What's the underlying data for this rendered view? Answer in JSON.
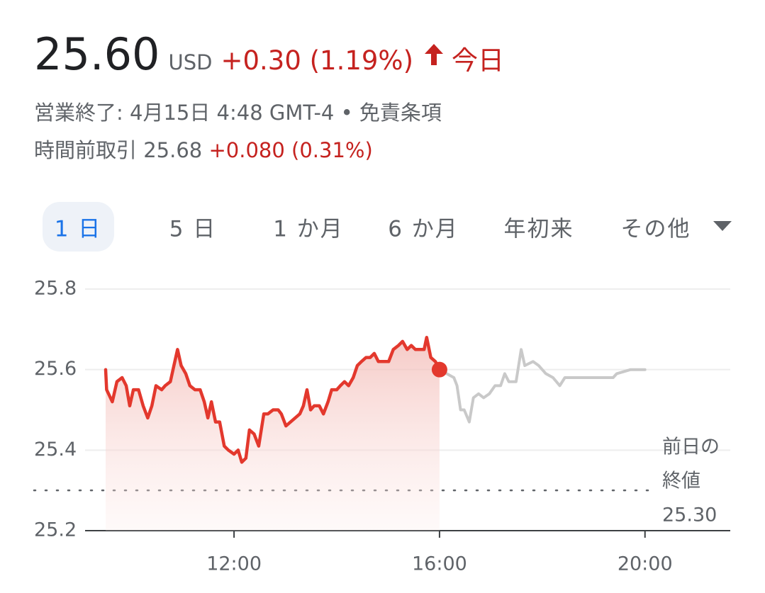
{
  "header": {
    "price": "25.60",
    "currency": "USD",
    "change": "+0.30 (1.19%)",
    "period": "今日",
    "status": "営業終了: 4月15日 4:48 GMT-4 •",
    "disclaimer": "免責条項",
    "premarket_label": "時間前取引",
    "premarket_price": "25.68",
    "premarket_change": "+0.080 (0.31%)"
  },
  "tabs": [
    "1 日",
    "5 日",
    "1 か月",
    "6 か月",
    "年初来",
    "その他"
  ],
  "selected_tab": 0,
  "chart_data": {
    "type": "line",
    "xlim": [
      9.1,
      21.66
    ],
    "xticks": [
      {
        "value": 12,
        "label": "12:00"
      },
      {
        "value": 16,
        "label": "16:00"
      },
      {
        "value": 20,
        "label": "20:00"
      }
    ],
    "ylim": [
      25.2,
      25.8
    ],
    "yticks": [
      25.2,
      25.4,
      25.6,
      25.8
    ],
    "grid": true,
    "previous_close": {
      "value": 25.3,
      "label": "25.30"
    },
    "previous_close_label": [
      "前日の",
      "終値"
    ],
    "series": [
      {
        "color": "#e3382d",
        "fill": true,
        "marker": "last",
        "x": [
          9.5,
          9.52,
          9.63,
          9.72,
          9.82,
          9.9,
          9.97,
          10.04,
          10.14,
          10.23,
          10.32,
          10.4,
          10.48,
          10.59,
          10.66,
          10.76,
          10.83,
          10.9,
          10.97,
          11.06,
          11.14,
          11.24,
          11.34,
          11.42,
          11.49,
          11.56,
          11.64,
          11.72,
          11.81,
          11.89,
          12,
          12.08,
          12.15,
          12.23,
          12.3,
          12.39,
          12.48,
          12.58,
          12.66,
          12.76,
          12.86,
          12.92,
          13.01,
          13.1,
          13.19,
          13.28,
          13.35,
          13.42,
          13.49,
          13.56,
          13.66,
          13.74,
          13.83,
          13.9,
          14,
          14.07,
          14.15,
          14.23,
          14.32,
          14.4,
          14.48,
          14.57,
          14.65,
          14.73,
          14.81,
          14.9,
          15.01,
          15.1,
          15.2,
          15.28,
          15.37,
          15.45,
          15.53,
          15.61,
          15.7,
          15.75,
          15.83,
          15.92,
          16
        ],
        "values": [
          25.6,
          25.55,
          25.52,
          25.57,
          25.58,
          25.56,
          25.51,
          25.55,
          25.55,
          25.51,
          25.48,
          25.51,
          25.56,
          25.55,
          25.56,
          25.57,
          25.61,
          25.65,
          25.61,
          25.59,
          25.56,
          25.55,
          25.55,
          25.52,
          25.48,
          25.52,
          25.47,
          25.47,
          25.41,
          25.4,
          25.39,
          25.4,
          25.37,
          25.38,
          25.45,
          25.44,
          25.41,
          25.49,
          25.49,
          25.5,
          25.5,
          25.49,
          25.46,
          25.47,
          25.48,
          25.49,
          25.51,
          25.55,
          25.5,
          25.51,
          25.51,
          25.49,
          25.52,
          25.55,
          25.55,
          25.56,
          25.57,
          25.56,
          25.58,
          25.61,
          25.62,
          25.63,
          25.63,
          25.64,
          25.62,
          25.62,
          25.62,
          25.65,
          25.66,
          25.67,
          25.65,
          25.66,
          25.65,
          25.65,
          25.65,
          25.68,
          25.63,
          25.62,
          25.6
        ]
      },
      {
        "color": "#c9c9c9",
        "x": [
          16,
          16.14,
          16.28,
          16.34,
          16.41,
          16.48,
          16.58,
          16.66,
          16.76,
          16.86,
          16.97,
          17.08,
          17.19,
          17.27,
          17.35,
          17.49,
          17.59,
          17.66,
          17.82,
          17.93,
          18.07,
          18.21,
          18.34,
          18.44,
          18.76,
          19.1,
          19.38,
          19.45,
          19.72,
          20
        ],
        "values": [
          25.6,
          25.59,
          25.58,
          25.56,
          25.5,
          25.5,
          25.47,
          25.53,
          25.54,
          25.53,
          25.54,
          25.56,
          25.56,
          25.59,
          25.57,
          25.57,
          25.65,
          25.61,
          25.62,
          25.61,
          25.59,
          25.58,
          25.56,
          25.58,
          25.58,
          25.58,
          25.58,
          25.59,
          25.6,
          25.6
        ]
      }
    ]
  }
}
